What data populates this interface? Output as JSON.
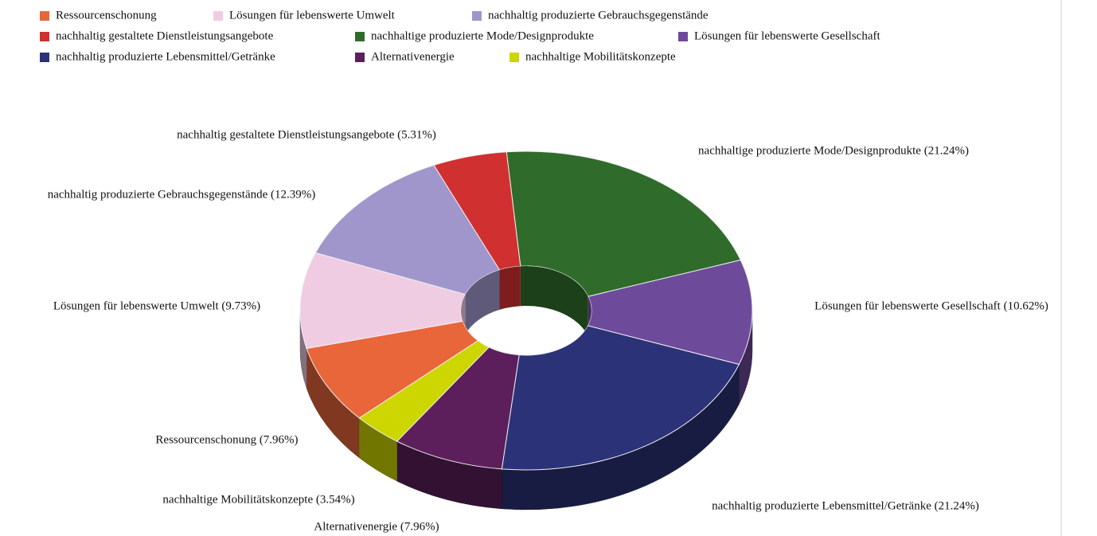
{
  "chart_data": {
    "type": "pie",
    "categories": [
      "Ressourcenschonung",
      "Lösungen für lebenswerte Umwelt",
      "nachhaltig produzierte Gebrauchsgegenstände",
      "nachhaltig gestaltete Dienstleistungsangebote",
      "nachhaltige produzierte Mode/Designprodukte",
      "Lösungen für lebenswerte Gesellschaft",
      "nachhaltig produzierte Lebensmittel/Getränke",
      "Alternativenergie",
      "nachhaltige Mobilitätskonzepte"
    ],
    "values": [
      7.96,
      9.73,
      12.39,
      5.31,
      21.24,
      10.62,
      21.24,
      7.96,
      3.54
    ],
    "value_labels": [
      "Ressourcenschonung (7.96%)",
      "Lösungen für lebenswerte Umwelt (9.73%)",
      "nachhaltig produzierte Gebrauchsgegenstände (12.39%)",
      "nachhaltig gestaltete Dienstleistungsangebote (5.31%)",
      "nachhaltige produzierte Mode/Designprodukte (21.24%)",
      "Lösungen für lebenswerte Gesellschaft (10.62%)",
      "nachhaltig produzierte Lebensmittel/Getränke (21.24%)",
      "Alternativenergie (7.96%)",
      "nachhaltige Mobilitätskonzepte (3.54%)"
    ],
    "colors": [
      "#e8663a",
      "#f0cce3",
      "#a096cc",
      "#d03030",
      "#2f6b2a",
      "#6e4a9b",
      "#2b3278",
      "#5c1f5c",
      "#cdd600"
    ],
    "legend": "top"
  }
}
